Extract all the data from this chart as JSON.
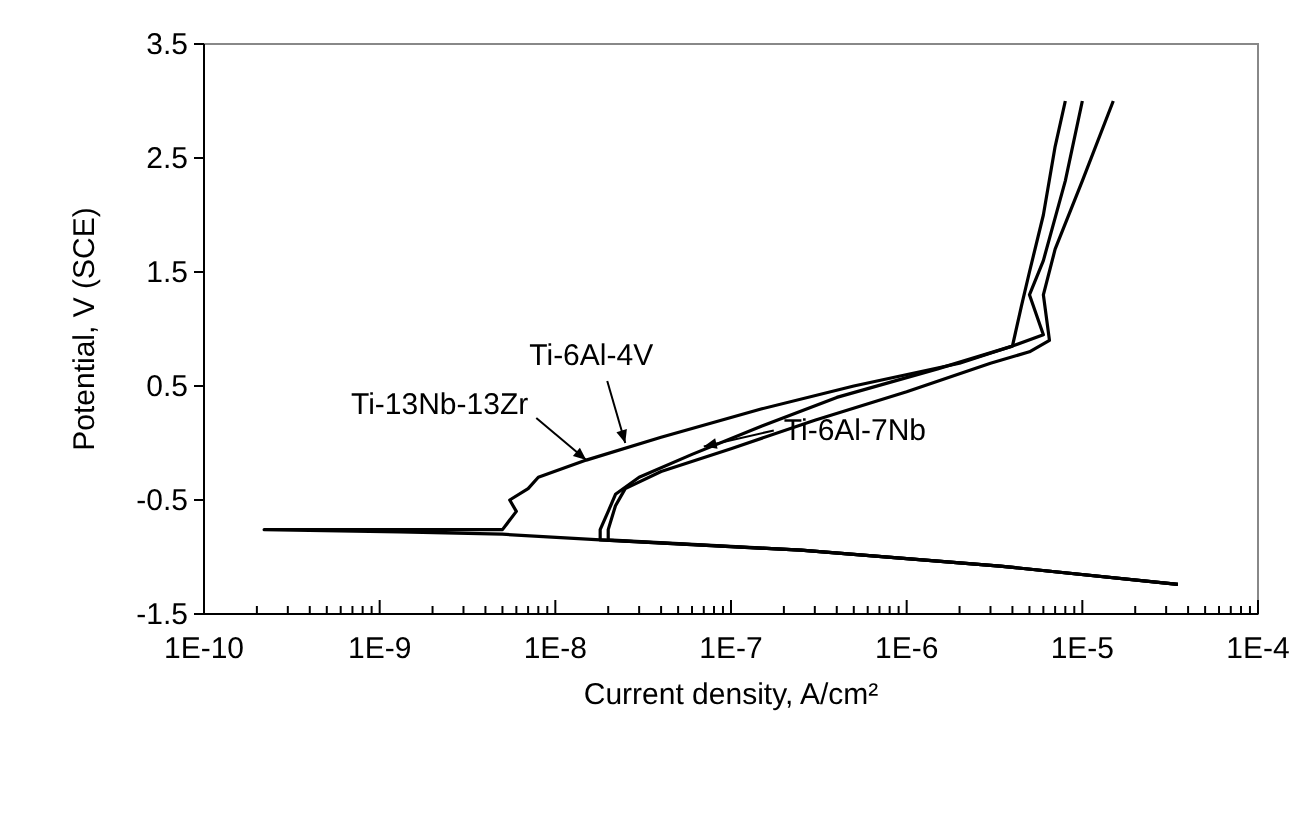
{
  "chart_data": {
    "type": "line",
    "xlabel": "Current density, A/cm²",
    "ylabel": "Potential, V (SCE)",
    "log": "x",
    "grid": false,
    "marker": "none",
    "line_style": "solid",
    "xlim": [
      1e-10,
      0.0001
    ],
    "ylim": [
      -1.5,
      3.5
    ],
    "xticks": [
      {
        "value": 1e-10,
        "label": "1E-10"
      },
      {
        "value": 1e-09,
        "label": "1E-9"
      },
      {
        "value": 1e-08,
        "label": "1E-8"
      },
      {
        "value": 1e-07,
        "label": "1E-7"
      },
      {
        "value": 1e-06,
        "label": "1E-6"
      },
      {
        "value": 1e-05,
        "label": "1E-5"
      },
      {
        "value": 0.0001,
        "label": "1E-4"
      }
    ],
    "yticks": [
      -1.5,
      -0.5,
      0.5,
      1.5,
      2.5,
      3.5
    ],
    "series": [
      {
        "color": "#000000",
        "x": [
          3.5e-05,
          3.4e-06,
          2.5e-07,
          1.8e-08,
          5e-09,
          1.3e-09,
          2.2e-10,
          5e-09,
          6e-09,
          5.5e-09,
          7e-09,
          8e-09,
          1.5e-08,
          4e-08,
          1.5e-07,
          5e-07,
          2e-06,
          4e-06,
          4.5e-06,
          5e-06,
          6e-06,
          7e-06,
          8e-06
        ],
        "values": [
          -1.24,
          -1.08,
          -0.94,
          -0.85,
          -0.8,
          -0.78,
          -0.76,
          -0.76,
          -0.6,
          -0.5,
          -0.4,
          -0.3,
          -0.15,
          0.05,
          0.3,
          0.5,
          0.7,
          0.85,
          1.2,
          1.5,
          2.0,
          2.6,
          3.0
        ]
      },
      {
        "color": "#000000",
        "x": [
          3.5e-05,
          3.4e-06,
          2.5e-07,
          1.8e-08,
          1.8e-08,
          2e-08,
          2.2e-08,
          3e-08,
          6e-08,
          1.5e-07,
          4e-07,
          1.5e-06,
          4e-06,
          6e-06,
          5e-06,
          6e-06,
          8e-06,
          1e-05
        ],
        "values": [
          -1.24,
          -1.08,
          -0.94,
          -0.85,
          -0.76,
          -0.6,
          -0.45,
          -0.3,
          -0.1,
          0.15,
          0.4,
          0.65,
          0.85,
          0.95,
          1.3,
          1.6,
          2.3,
          3.0
        ]
      },
      {
        "color": "#000000",
        "x": [
          3.5e-05,
          3.4e-06,
          2.5e-07,
          2e-08,
          2e-08,
          2.2e-08,
          2.5e-08,
          4e-08,
          1e-07,
          3e-07,
          1e-06,
          3e-06,
          5e-06,
          6.5e-06,
          6e-06,
          7e-06,
          1e-05,
          1.5e-05
        ],
        "values": [
          -1.24,
          -1.08,
          -0.94,
          -0.85,
          -0.76,
          -0.55,
          -0.4,
          -0.25,
          -0.05,
          0.2,
          0.45,
          0.7,
          0.8,
          0.9,
          1.3,
          1.7,
          2.3,
          3.0
        ]
      }
    ],
    "annotations": [
      {
        "text": "Ti-13Nb-13Zr",
        "x": 1.5e-08,
        "y": -0.15
      },
      {
        "text": "Ti-6Al-4V",
        "x": 2.5e-08,
        "y": 0.0
      },
      {
        "text": "Ti-6Al-7Nb",
        "x": 7e-08,
        "y": -0.03
      }
    ]
  }
}
